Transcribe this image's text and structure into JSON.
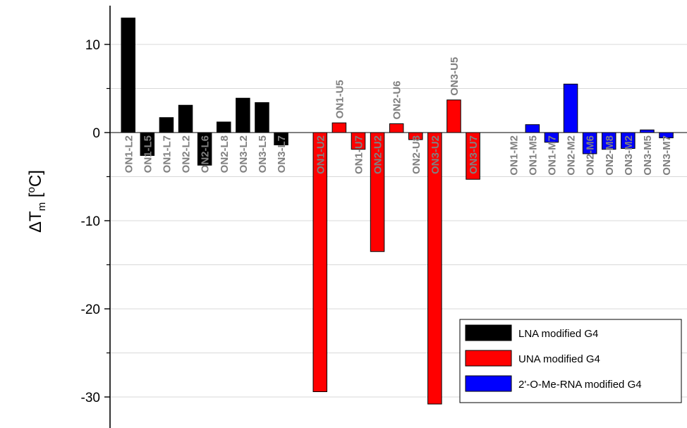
{
  "chart_data": {
    "type": "bar",
    "ylabel": {
      "prefix": "ΔT",
      "subscript": "m",
      "open": " [",
      "superscript": "o",
      "unit": "C]"
    },
    "ylim": [
      -33.5,
      14.5
    ],
    "yticks": [
      10,
      0,
      -10,
      -20,
      -30
    ],
    "yticklabels": [
      "10",
      "0",
      "-10",
      "-20",
      "-30"
    ],
    "grid": true,
    "legend_position": "bottom-right",
    "series": [
      {
        "name": "LNA modified G4",
        "color": "#000000",
        "categories": [
          "ON1-L2",
          "ON1-L5",
          "ON1-L7",
          "ON2-L2",
          "ON2-L6",
          "ON2-L8",
          "ON3-L2",
          "ON3-L5",
          "ON3-L7"
        ],
        "values": [
          13.0,
          -2.6,
          1.7,
          3.1,
          -3.7,
          1.2,
          3.9,
          3.4,
          -1.4
        ]
      },
      {
        "name": "UNA modified G4",
        "color": "#ff0000",
        "categories": [
          "ON1-U2",
          "ON1-U5",
          "ON1-U7",
          "ON2-U2",
          "ON2-U6",
          "ON2-U8",
          "ON3-U2",
          "ON3-U5",
          "ON3-U7"
        ],
        "values": [
          -29.4,
          1.1,
          -1.9,
          -13.5,
          1.0,
          -0.8,
          -30.8,
          3.7,
          -5.3
        ]
      },
      {
        "name": "2'-O-Me-RNA modified G4",
        "color": "#0000ff",
        "categories": [
          "ON1-M2",
          "ON1-M5",
          "ON1-M7",
          "ON2-M2",
          "ON2-M6",
          "ON2-M8",
          "ON3-M2",
          "ON3-M5",
          "ON3-M7"
        ],
        "values": [
          0.0,
          0.9,
          -1.1,
          5.5,
          -2.4,
          -1.9,
          -1.8,
          0.3,
          -0.6
        ]
      }
    ]
  }
}
